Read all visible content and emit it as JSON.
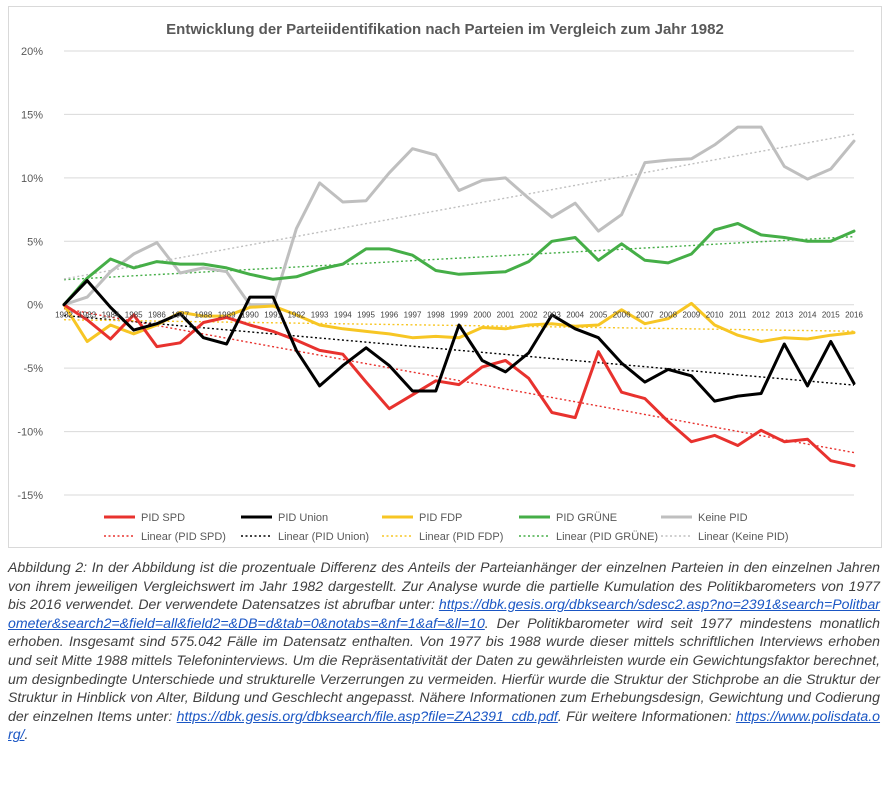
{
  "chart_data": {
    "type": "line",
    "title": "Entwicklung der Parteiidentifikation nach Parteien im Vergleich zum Jahr 1982",
    "xlabel": "",
    "ylabel": "",
    "ylim": [
      -15,
      20
    ],
    "y_ticks": [
      20,
      15,
      10,
      5,
      0,
      -5,
      -10,
      -15
    ],
    "y_tick_labels": [
      "20%",
      "15%",
      "10%",
      "5%",
      "0%",
      "-5%",
      "-10%",
      "-15%"
    ],
    "grid": true,
    "legend_position": "bottom",
    "categories": [
      "1982",
      "1983",
      "1984",
      "1985",
      "1986",
      "1987",
      "1988",
      "1989",
      "1990",
      "1991",
      "1992",
      "1993",
      "1994",
      "1995",
      "1996",
      "1997",
      "1998",
      "1999",
      "2000",
      "2001",
      "2002",
      "2003",
      "2004",
      "2005",
      "2006",
      "2007",
      "2008",
      "2009",
      "2010",
      "2011",
      "2012",
      "2013",
      "2014",
      "2015",
      "2016"
    ],
    "series": [
      {
        "name": "PID SPD",
        "color": "#e8322e",
        "trend_name": "Linear (PID SPD)",
        "values": [
          0,
          -1.2,
          -2.7,
          -0.8,
          -3.3,
          -3.0,
          -1.4,
          -1.0,
          -1.6,
          -2.1,
          -2.8,
          -3.6,
          -3.9,
          -6.1,
          -8.2,
          -7.1,
          -6.0,
          -6.3,
          -4.9,
          -4.4,
          -5.8,
          -8.5,
          -8.9,
          -3.7,
          -6.9,
          -7.4,
          -9.2,
          -10.8,
          -10.3,
          -11.1,
          -9.9,
          -10.8,
          -10.6,
          -12.3,
          -12.7
        ]
      },
      {
        "name": "PID Union",
        "color": "#000000",
        "trend_name": "Linear (PID Union)",
        "values": [
          0,
          1.9,
          -0.2,
          -2.0,
          -1.5,
          -0.7,
          -2.6,
          -3.1,
          0.6,
          0.6,
          -3.6,
          -6.4,
          -4.8,
          -3.4,
          -4.8,
          -6.8,
          -6.8,
          -1.6,
          -4.4,
          -5.3,
          -3.8,
          -0.8,
          -1.9,
          -2.6,
          -4.6,
          -6.1,
          -5.1,
          -5.6,
          -7.6,
          -7.2,
          -7.0,
          -3.1,
          -6.4,
          -2.9,
          -6.2
        ]
      },
      {
        "name": "PID FDP",
        "color": "#f7c624",
        "trend_name": "Linear (PID FDP)",
        "values": [
          0,
          -2.9,
          -1.6,
          -2.3,
          -1.6,
          -0.6,
          -0.9,
          -0.9,
          -0.2,
          -0.1,
          -0.8,
          -1.6,
          -1.9,
          -2.1,
          -2.3,
          -2.6,
          -2.5,
          -2.6,
          -1.8,
          -1.9,
          -1.6,
          -1.5,
          -1.7,
          -1.6,
          -0.4,
          -1.5,
          -1.1,
          0.1,
          -1.6,
          -2.4,
          -2.9,
          -2.6,
          -2.7,
          -2.4,
          -2.2
        ]
      },
      {
        "name": "PID GRÜNE",
        "color": "#45ae47",
        "trend_name": "Linear (PID GRÜNE)",
        "values": [
          0,
          2.1,
          3.6,
          2.9,
          3.4,
          3.2,
          3.2,
          2.9,
          2.4,
          2.0,
          2.2,
          2.8,
          3.2,
          4.4,
          4.4,
          3.9,
          2.7,
          2.4,
          2.5,
          2.6,
          3.4,
          5.0,
          5.3,
          3.5,
          4.8,
          3.5,
          3.3,
          4.0,
          5.9,
          6.4,
          5.5,
          5.3,
          5.0,
          5.0,
          5.8
        ]
      },
      {
        "name": "Keine PID",
        "color": "#bfbfbf",
        "trend_name": "Linear (Keine PID)",
        "values": [
          0,
          0.6,
          2.6,
          4.0,
          4.9,
          2.5,
          2.9,
          2.6,
          0.0,
          0.0,
          6.0,
          9.6,
          8.1,
          8.2,
          10.4,
          12.3,
          11.8,
          9.0,
          9.8,
          10.0,
          8.4,
          6.9,
          8.0,
          5.8,
          7.1,
          11.2,
          11.4,
          11.5,
          12.6,
          14.0,
          14.0,
          10.9,
          9.9,
          10.7,
          12.9
        ]
      }
    ]
  },
  "caption": {
    "text_1": "Abbildung 2: In der Abbildung ist die prozentuale Differenz des Anteils der Parteianhänger der einzelnen Parteien in den einzelnen Jahren von ihrem jeweiligen Vergleichswert im Jahr 1982 dargestellt. Zur Analyse wurde die partielle Kumulation des Politikbarometers von 1977 bis 2016 verwendet. Der verwendete Datensatzes ist abrufbar unter: ",
    "link_1": "https://dbk.gesis.org/dbksearch/sdesc2.asp?no=2391&search=Politbarometer&search2=&field=all&field2=&DB=d&tab=0&notabs=&nf=1&af=&ll=10",
    "text_2": ". Der Politikbarometer wird seit 1977 mindestens monatlich erhoben. Insgesamt sind 575.042 Fälle im Datensatz enthalten. Von 1977 bis 1988 wurde dieser mittels schriftlichen Interviews erhoben und seit Mitte 1988 mittels Telefoninterviews. Um die Repräsentativität der Daten zu gewährleisten wurde ein Gewichtungsfaktor berechnet, um designbedingte Unterschiede und strukturelle Verzerrungen zu vermeiden. Hierfür wurde die Struktur der Stichprobe an die Struktur der Struktur in Hinblick von Alter, Bildung und Geschlecht angepasst. Nähere Informationen zum Erhebungsdesign, Gewichtung und Codierung der einzelnen Items unter: ",
    "link_2": "https://dbk.gesis.org/dbksearch/file.asp?file=ZA2391_cdb.pdf",
    "text_3": ". Für weitere Informationen: ",
    "link_3": "https://www.polisdata.org/",
    "text_4": "."
  }
}
